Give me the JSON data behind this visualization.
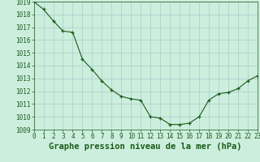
{
  "x": [
    0,
    1,
    2,
    3,
    4,
    5,
    6,
    7,
    8,
    9,
    10,
    11,
    12,
    13,
    14,
    15,
    16,
    17,
    18,
    19,
    20,
    21,
    22,
    23
  ],
  "y": [
    1019.0,
    1018.4,
    1017.5,
    1016.7,
    1016.6,
    1014.5,
    1013.7,
    1012.8,
    1012.1,
    1011.6,
    1011.4,
    1011.3,
    1010.0,
    1009.9,
    1009.4,
    1009.4,
    1009.5,
    1010.0,
    1011.3,
    1011.8,
    1011.9,
    1012.2,
    1012.8,
    1013.2
  ],
  "xlabel": "Graphe pression niveau de la mer (hPa)",
  "ylim": [
    1009,
    1019
  ],
  "xlim": [
    0,
    23
  ],
  "yticks": [
    1009,
    1010,
    1011,
    1012,
    1013,
    1014,
    1015,
    1016,
    1017,
    1018,
    1019
  ],
  "xticks": [
    0,
    1,
    2,
    3,
    4,
    5,
    6,
    7,
    8,
    9,
    10,
    11,
    12,
    13,
    14,
    15,
    16,
    17,
    18,
    19,
    20,
    21,
    22,
    23
  ],
  "xtick_labels": [
    "0",
    "1",
    "2",
    "3",
    "4",
    "5",
    "6",
    "7",
    "8",
    "9",
    "10",
    "11",
    "12",
    "13",
    "14",
    "15",
    "16",
    "17",
    "18",
    "19",
    "20",
    "21",
    "22",
    "23"
  ],
  "line_color": "#1a5c1a",
  "marker_color": "#1a5c1a",
  "bg_color": "#cceedd",
  "grid_color": "#aacccc",
  "xlabel_color": "#1a5c1a",
  "tick_color": "#1a5c1a",
  "xlabel_fontsize": 7.5,
  "tick_fontsize": 5.5
}
